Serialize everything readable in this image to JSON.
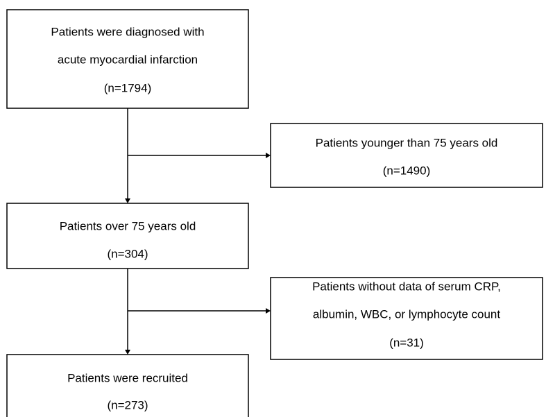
{
  "nodes": [
    {
      "lines": [
        "Patients were diagnosed with",
        "acute myocardial infarction",
        "(n=1794)"
      ]
    },
    {
      "lines": [
        "Patients younger than 75 years old",
        "(n=1490)"
      ]
    },
    {
      "lines": [
        "Patients over 75 years old",
        "(n=304)"
      ]
    },
    {
      "lines": [
        "Patients without data of serum CRP,",
        "albumin, WBC, or lymphocyte count",
        "(n=31)"
      ]
    },
    {
      "lines": [
        "Patients were recruited",
        "(n=273)"
      ]
    }
  ]
}
